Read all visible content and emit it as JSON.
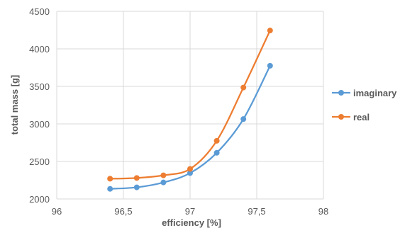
{
  "chart_data": {
    "type": "line",
    "xlabel": "efficiency [%]",
    "ylabel": "total mass [g]",
    "xlim": [
      96,
      98
    ],
    "ylim": [
      2000,
      4500
    ],
    "x_ticks": [
      "96",
      "96,5",
      "97",
      "97,5",
      "98"
    ],
    "y_ticks": [
      "2000",
      "2500",
      "3000",
      "3500",
      "4000",
      "4500"
    ],
    "grid": true,
    "legend_position": "right",
    "smooth": true,
    "series": [
      {
        "name": "imaginary",
        "color": "#5b9bd5",
        "x": [
          96.4,
          96.6,
          96.8,
          97.0,
          97.2,
          97.4,
          97.6
        ],
        "y": [
          2135,
          2155,
          2220,
          2345,
          2615,
          3065,
          3775
        ]
      },
      {
        "name": "real",
        "color": "#ed7d31",
        "x": [
          96.4,
          96.6,
          96.8,
          97.0,
          97.2,
          97.4,
          97.6
        ],
        "y": [
          2270,
          2280,
          2315,
          2400,
          2775,
          3485,
          4245
        ]
      }
    ]
  }
}
